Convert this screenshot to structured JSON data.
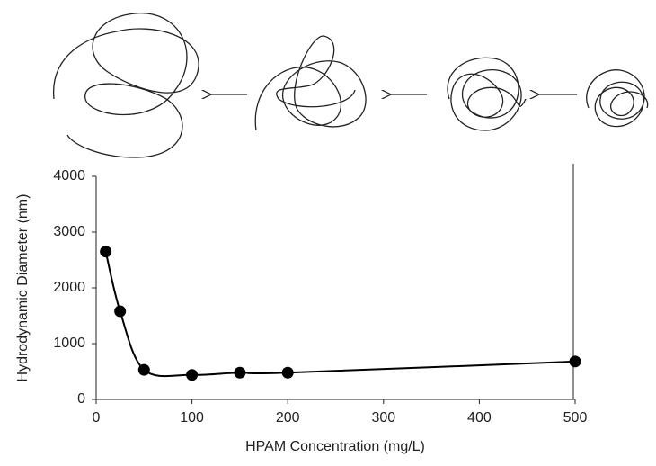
{
  "chart_data": {
    "type": "line",
    "x_label": "HPAM Concentration  (mg/L)",
    "y_label": "Hydrodynamic  Diameter  (nm)",
    "x": [
      10,
      25,
      50,
      100,
      150,
      200,
      500
    ],
    "values": [
      2650,
      1580,
      530,
      440,
      480,
      480,
      680
    ],
    "color": "#000000",
    "xlim": [
      0,
      500
    ],
    "xticks": [
      0,
      100,
      200,
      300,
      400,
      500
    ],
    "ylim": [
      0,
      4000
    ],
    "yticks": [
      0,
      1000,
      2000,
      3000,
      4000
    ]
  }
}
